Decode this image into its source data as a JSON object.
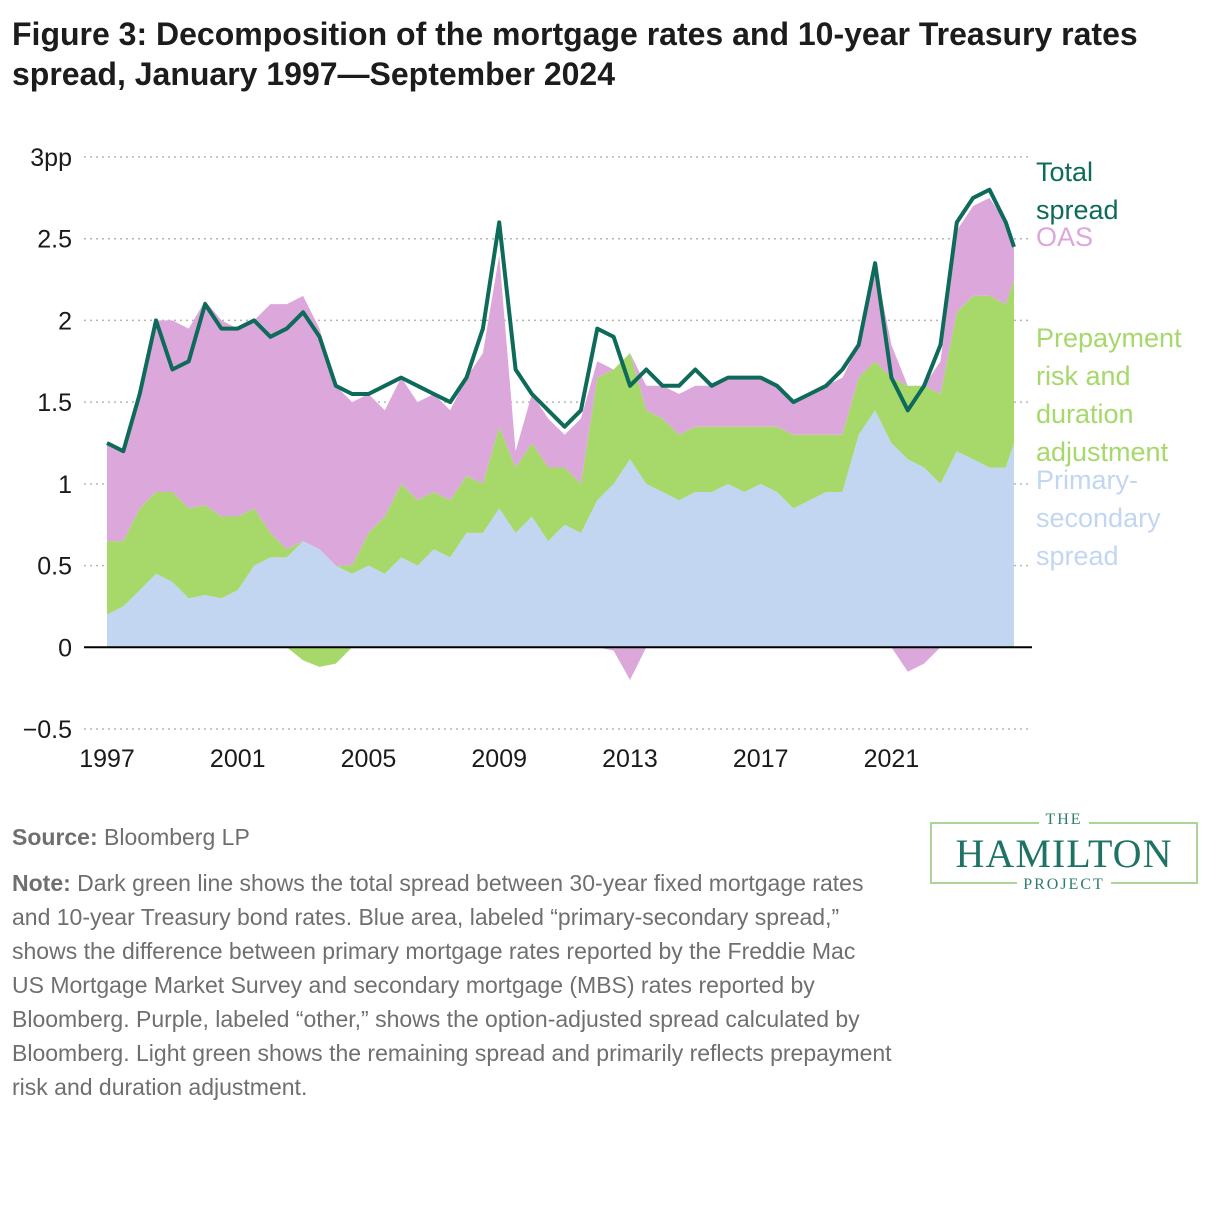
{
  "title": "Figure 3: Decomposition of the mortgage rates and 10-year Treasury rates spread, January 1997—September 2024",
  "colors": {
    "total_spread": "#0e6b5a",
    "oas": "#dca8dc",
    "prepayment": "#a6d86a",
    "primary_secondary": "#c2d6f2",
    "grid": "#b5b5b5",
    "axis": "#000000"
  },
  "chart_data": {
    "type": "area",
    "x_unit": "year",
    "y_unit": "pp",
    "ylim": [
      -0.5,
      3
    ],
    "xlim": [
      1997,
      2024.75
    ],
    "yticks": [
      3,
      2.5,
      2,
      1.5,
      1,
      0.5,
      0,
      -0.5
    ],
    "ytick_labels": [
      "3pp",
      "2.5",
      "2",
      "1.5",
      "1",
      "0.5",
      "0",
      "−0.5"
    ],
    "xticks": [
      1997,
      2001,
      2005,
      2009,
      2013,
      2017,
      2021
    ],
    "xtick_labels": [
      "1997",
      "2001",
      "2005",
      "2009",
      "2013",
      "2017",
      "2021"
    ],
    "grid": "horizontal dotted",
    "x": [
      1997.0,
      1997.5,
      1998.0,
      1998.5,
      1999.0,
      1999.5,
      2000.0,
      2000.5,
      2001.0,
      2001.5,
      2002.0,
      2002.5,
      2003.0,
      2003.5,
      2004.0,
      2004.5,
      2005.0,
      2005.5,
      2006.0,
      2006.5,
      2007.0,
      2007.5,
      2008.0,
      2008.5,
      2009.0,
      2009.5,
      2010.0,
      2010.5,
      2011.0,
      2011.5,
      2012.0,
      2012.5,
      2013.0,
      2013.5,
      2014.0,
      2014.5,
      2015.0,
      2015.5,
      2016.0,
      2016.5,
      2017.0,
      2017.5,
      2018.0,
      2018.5,
      2019.0,
      2019.5,
      2020.0,
      2020.5,
      2021.0,
      2021.5,
      2022.0,
      2022.5,
      2023.0,
      2023.5,
      2024.0,
      2024.5,
      2024.75
    ],
    "series": [
      {
        "name": "Primary-secondary spread",
        "values": [
          0.2,
          0.25,
          0.35,
          0.45,
          0.4,
          0.3,
          0.32,
          0.3,
          0.35,
          0.5,
          0.55,
          0.55,
          0.65,
          0.6,
          0.5,
          0.45,
          0.5,
          0.45,
          0.55,
          0.5,
          0.6,
          0.55,
          0.7,
          0.7,
          0.85,
          0.7,
          0.8,
          0.65,
          0.75,
          0.7,
          0.9,
          1.0,
          1.15,
          1.0,
          0.95,
          0.9,
          0.95,
          0.95,
          1.0,
          0.95,
          1.0,
          0.95,
          0.85,
          0.9,
          0.95,
          0.95,
          1.3,
          1.45,
          1.25,
          1.15,
          1.1,
          1.0,
          1.2,
          1.15,
          1.1,
          1.1,
          1.25
        ]
      },
      {
        "name": "Prepayment risk and duration adjustment",
        "values": [
          0.45,
          0.4,
          0.5,
          0.5,
          0.55,
          0.55,
          0.55,
          0.5,
          0.45,
          0.35,
          0.15,
          0.05,
          -0.08,
          -0.12,
          -0.1,
          0.05,
          0.2,
          0.35,
          0.45,
          0.4,
          0.35,
          0.35,
          0.35,
          0.3,
          0.5,
          0.4,
          0.45,
          0.45,
          0.35,
          0.3,
          0.75,
          0.7,
          0.65,
          0.45,
          0.45,
          0.4,
          0.4,
          0.4,
          0.35,
          0.4,
          0.35,
          0.4,
          0.45,
          0.4,
          0.35,
          0.35,
          0.35,
          0.3,
          0.4,
          0.45,
          0.5,
          0.55,
          0.85,
          1.0,
          1.05,
          1.0,
          1.0
        ]
      },
      {
        "name": "OAS",
        "values": [
          0.6,
          0.55,
          0.7,
          1.05,
          1.05,
          1.1,
          1.25,
          1.2,
          1.15,
          1.15,
          1.4,
          1.5,
          1.5,
          1.35,
          1.1,
          1.0,
          0.85,
          0.65,
          0.65,
          0.6,
          0.6,
          0.55,
          0.6,
          0.8,
          1.05,
          0.1,
          0.3,
          0.3,
          0.2,
          0.4,
          0.1,
          -0.02,
          -0.2,
          0.15,
          0.2,
          0.25,
          0.25,
          0.25,
          0.3,
          0.3,
          0.3,
          0.25,
          0.2,
          0.25,
          0.3,
          0.35,
          0.2,
          0.6,
          0.2,
          -0.15,
          -0.1,
          0.2,
          0.5,
          0.55,
          0.6,
          0.5,
          0.2
        ]
      }
    ],
    "line": {
      "name": "Total spread",
      "values": [
        1.25,
        1.2,
        1.55,
        2.0,
        1.7,
        1.75,
        2.1,
        1.95,
        1.95,
        2.0,
        1.9,
        1.95,
        2.05,
        1.9,
        1.6,
        1.55,
        1.55,
        1.6,
        1.65,
        1.6,
        1.55,
        1.5,
        1.65,
        1.95,
        2.6,
        1.7,
        1.55,
        1.45,
        1.35,
        1.45,
        1.95,
        1.9,
        1.6,
        1.7,
        1.6,
        1.6,
        1.7,
        1.6,
        1.65,
        1.65,
        1.65,
        1.6,
        1.5,
        1.55,
        1.6,
        1.7,
        1.85,
        2.35,
        1.65,
        1.45,
        1.6,
        1.85,
        2.6,
        2.75,
        2.8,
        2.6,
        2.45
      ]
    }
  },
  "labels": {
    "total_spread": [
      "Total",
      "spread"
    ],
    "oas": [
      "OAS"
    ],
    "prepayment": [
      "Prepayment",
      "risk and",
      "duration",
      "adjustment"
    ],
    "primary_secondary": [
      "Primary-",
      "secondary",
      "spread"
    ]
  },
  "source": {
    "label": "Source:",
    "text": " Bloomberg LP"
  },
  "note": {
    "label": "Note:",
    "text": " Dark green line shows the total spread between 30-year fixed mortgage rates and 10-year Treasury bond rates. Blue area, labeled “primary-secondary spread,” shows the difference between primary mortgage rates reported by the Freddie Mac US Mortgage Market Survey and secondary mortgage (MBS) rates reported by Bloomberg. Purple, labeled “other,” shows the option-adjusted spread calculated by Bloomberg. Light green shows the remaining spread and primarily reflects prepayment risk and duration adjustment."
  },
  "logo": {
    "top": "THE",
    "main": "HAMILTON",
    "bottom": "PROJECT"
  }
}
